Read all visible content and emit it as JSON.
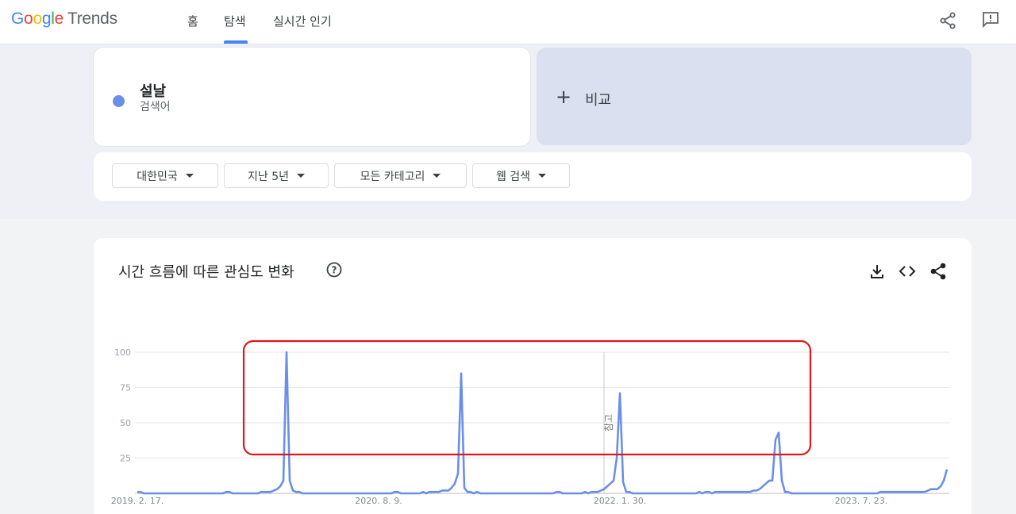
{
  "header": {
    "logo": "Google",
    "product": "Trends",
    "nav": [
      "홈",
      "탐색",
      "실시간 인기"
    ]
  },
  "search": {
    "term": "설날",
    "term_type": "검색어",
    "compare": "비교"
  },
  "filters": [
    "대한민국",
    "지난 5년",
    "모든 카테고리",
    "웹 검색"
  ],
  "chart_data": {
    "type": "line",
    "title": "시간 흐름에 따른 관심도 변화",
    "annotation": "참고",
    "color": "#6b8fe8",
    "categories": [
      "2019. 2. 17.",
      null,
      null,
      null,
      null,
      null,
      null,
      null,
      null,
      null,
      null,
      null,
      null,
      null,
      null,
      null,
      null,
      null,
      null,
      null,
      null,
      null,
      null,
      null,
      null,
      null,
      null,
      null,
      null,
      null,
      null,
      null,
      null,
      null,
      null,
      null,
      null,
      null,
      null,
      null,
      null,
      null,
      null,
      null,
      null,
      null,
      null,
      null,
      null,
      null,
      null,
      null,
      null,
      null,
      null,
      null,
      null,
      null,
      null,
      null,
      null,
      null,
      null,
      null,
      null,
      null,
      null,
      null,
      null,
      null,
      null,
      null,
      null,
      null,
      null,
      null,
      "2020. 8. 9.",
      null,
      null,
      null,
      null,
      null,
      null,
      null,
      null,
      null,
      null,
      null,
      null,
      null,
      null,
      null,
      null,
      null,
      null,
      null,
      null,
      null,
      null,
      null,
      null,
      null,
      null,
      null,
      null,
      null,
      null,
      null,
      null,
      null,
      null,
      null,
      null,
      null,
      null,
      null,
      null,
      null,
      null,
      null,
      null,
      null,
      null,
      null,
      null,
      null,
      null,
      null,
      null,
      null,
      null,
      null,
      null,
      null,
      null,
      null,
      null,
      null,
      null,
      null,
      null,
      null,
      null,
      null,
      null,
      null,
      null,
      null,
      null,
      null,
      null,
      null,
      "2022. 1. 30.",
      null,
      null,
      null,
      null,
      null,
      null,
      null,
      null,
      null,
      null,
      null,
      null,
      null,
      null,
      null,
      null,
      null,
      null,
      null,
      null,
      null,
      null,
      null,
      null,
      null,
      null,
      null,
      null,
      null,
      null,
      null,
      null,
      null,
      null,
      null,
      null,
      null,
      null,
      null,
      null,
      null,
      null,
      null,
      null,
      null,
      null,
      null,
      null,
      null,
      null,
      null,
      null,
      null,
      null,
      null,
      null,
      null,
      null,
      null,
      null,
      null,
      null,
      null,
      null,
      null,
      null,
      null,
      null,
      null,
      null,
      null,
      null,
      null,
      null,
      null,
      "2023. 7. 23.",
      null,
      null,
      null,
      null,
      null,
      null,
      null,
      null,
      null,
      null,
      null,
      null,
      null,
      null,
      null,
      null,
      null,
      null,
      null,
      null,
      null,
      null,
      null,
      null,
      null,
      null,
      null
    ],
    "values": [
      1,
      1,
      0,
      0,
      0,
      0,
      0,
      0,
      0,
      0,
      0,
      0,
      0,
      0,
      0,
      0,
      0,
      0,
      0,
      0,
      0,
      0,
      0,
      0,
      0,
      0,
      0,
      0,
      1,
      1,
      0,
      0,
      0,
      0,
      0,
      0,
      0,
      0,
      0,
      1,
      1,
      1,
      1,
      2,
      3,
      5,
      9,
      100,
      9,
      2,
      1,
      1,
      0,
      0,
      0,
      0,
      0,
      0,
      0,
      0,
      0,
      0,
      0,
      0,
      0,
      0,
      0,
      0,
      0,
      0,
      0,
      0,
      0,
      0,
      0,
      0,
      0,
      0,
      0,
      0,
      0,
      1,
      1,
      0,
      0,
      0,
      0,
      0,
      0,
      0,
      1,
      0,
      1,
      1,
      1,
      1,
      2,
      2,
      2,
      4,
      7,
      14,
      85,
      4,
      1,
      1,
      0,
      1,
      0,
      0,
      0,
      0,
      0,
      0,
      0,
      0,
      0,
      0,
      0,
      0,
      0,
      0,
      0,
      0,
      0,
      0,
      0,
      0,
      0,
      0,
      0,
      0,
      1,
      1,
      0,
      0,
      0,
      0,
      0,
      0,
      0,
      1,
      0,
      1,
      1,
      1,
      2,
      3,
      5,
      7,
      9,
      25,
      71,
      8,
      1,
      1,
      0,
      0,
      0,
      0,
      0,
      0,
      0,
      0,
      0,
      0,
      0,
      0,
      0,
      0,
      0,
      0,
      0,
      0,
      0,
      0,
      0,
      1,
      0,
      1,
      1,
      0,
      1,
      1,
      1,
      1,
      1,
      1,
      1,
      1,
      1,
      1,
      1,
      1,
      2,
      2,
      3,
      5,
      7,
      9,
      9,
      38,
      43,
      9,
      1,
      1,
      0,
      0,
      0,
      0,
      0,
      0,
      0,
      0,
      0,
      0,
      0,
      0,
      0,
      0,
      0,
      0,
      0,
      0,
      0,
      0,
      0,
      0,
      0,
      0,
      0,
      0,
      0,
      0,
      1,
      1,
      1,
      1,
      1,
      1,
      1,
      1,
      1,
      1,
      1,
      1,
      1,
      1,
      1,
      2,
      3,
      3,
      3,
      5,
      9,
      17
    ],
    "ylim": [
      0,
      100
    ],
    "yticks": [
      25,
      50,
      75,
      100
    ],
    "grid": true
  }
}
